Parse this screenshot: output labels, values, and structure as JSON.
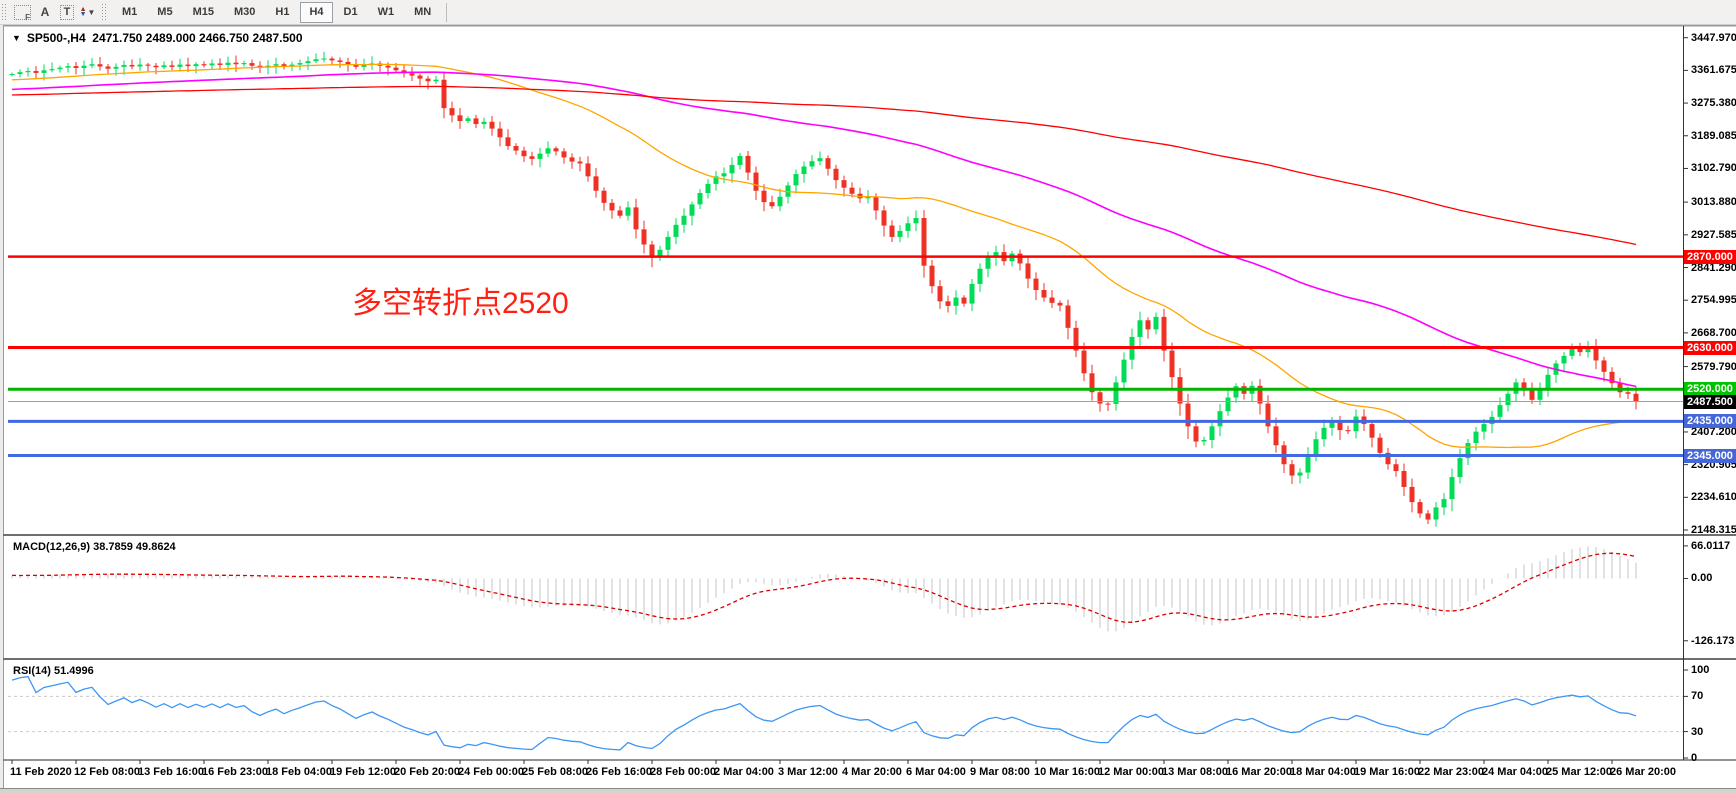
{
  "toolbar": {
    "tools": {
      "grid_label": "F",
      "pointer_label": "A",
      "text_label": "T"
    },
    "timeframes": [
      "M1",
      "M5",
      "M15",
      "M30",
      "H1",
      "H4",
      "D1",
      "W1",
      "MN"
    ],
    "active_timeframe": "H4"
  },
  "chart": {
    "title": "SP500-,H4  2471.750 2489.000 2466.750 2487.500",
    "annotation": {
      "text": "多空转折点2520",
      "color": "#FF2012"
    }
  },
  "chart_data": {
    "type": "candlestick",
    "symbol": "SP500-",
    "period": "H4",
    "ohlc_title": {
      "open": "2471.750",
      "high": "2489.000",
      "low": "2466.750",
      "close": "2487.500"
    },
    "open_first": 3350,
    "closes": [
      3352,
      3357,
      3360,
      3355,
      3362,
      3365,
      3369,
      3373,
      3368,
      3374,
      3378,
      3372,
      3366,
      3371,
      3376,
      3372,
      3377,
      3374,
      3370,
      3375,
      3371,
      3377,
      3373,
      3378,
      3375,
      3380,
      3376,
      3382,
      3378,
      3381,
      3374,
      3369,
      3374,
      3378,
      3372,
      3377,
      3381,
      3386,
      3391,
      3393,
      3388,
      3384,
      3378,
      3371,
      3376,
      3380,
      3374,
      3369,
      3362,
      3354,
      3348,
      3340,
      3333,
      3337,
      3262,
      3243,
      3228,
      3235,
      3220,
      3226,
      3208,
      3185,
      3162,
      3150,
      3135,
      3128,
      3142,
      3156,
      3148,
      3132,
      3121,
      3116,
      3082,
      3044,
      3012,
      2992,
      2978,
      3000,
      2942,
      2902,
      2868,
      2888,
      2922,
      2954,
      2978,
      3008,
      3038,
      3062,
      3082,
      3090,
      3112,
      3136,
      3092,
      3044,
      3014,
      3003,
      3028,
      3058,
      3088,
      3108,
      3122,
      3130,
      3102,
      3072,
      3052,
      3036,
      3024,
      3028,
      2992,
      2952,
      2922,
      2938,
      2958,
      2972,
      2846,
      2792,
      2752,
      2740,
      2762,
      2746,
      2798,
      2838,
      2868,
      2882,
      2858,
      2878,
      2852,
      2812,
      2782,
      2762,
      2748,
      2741,
      2682,
      2622,
      2562,
      2512,
      2482,
      2481,
      2538,
      2598,
      2658,
      2702,
      2678,
      2711,
      2622,
      2552,
      2482,
      2422,
      2382,
      2386,
      2422,
      2462,
      2498,
      2528,
      2508,
      2529,
      2482,
      2422,
      2372,
      2322,
      2292,
      2300,
      2348,
      2388,
      2418,
      2438,
      2412,
      2409,
      2448,
      2428,
      2392,
      2352,
      2322,
      2304,
      2262,
      2222,
      2192,
      2176,
      2208,
      2230,
      2288,
      2338,
      2378,
      2408,
      2428,
      2447,
      2478,
      2508,
      2538,
      2522,
      2492,
      2520,
      2558,
      2588,
      2608,
      2628,
      2618,
      2630,
      2596,
      2566,
      2536,
      2512,
      2508,
      2487.5
    ],
    "candle_colors": {
      "up": "#00DC55",
      "down": "#EF3124"
    },
    "x_labels": [
      "11 Feb 2020",
      "12 Feb 08:00",
      "13 Feb 16:00",
      "16 Feb 23:00",
      "18 Feb 04:00",
      "19 Feb 12:00",
      "20 Feb 20:00",
      "24 Feb 00:00",
      "25 Feb 08:00",
      "26 Feb 16:00",
      "28 Feb 00:00",
      "2 Mar 04:00",
      "3 Mar 12:00",
      "4 Mar 20:00",
      "6 Mar 04:00",
      "9 Mar 08:00",
      "10 Mar 16:00",
      "12 Mar 00:00",
      "13 Mar 08:00",
      "16 Mar 20:00",
      "18 Mar 04:00",
      "19 Mar 16:00",
      "22 Mar 23:00",
      "24 Mar 04:00",
      "25 Mar 12:00",
      "26 Mar 20:00"
    ],
    "x_label_every_bars": 8,
    "y_axis": {
      "ticks": [
        {
          "label": "3447.970",
          "value": 3447.97
        },
        {
          "label": "3361.675",
          "value": 3361.675
        },
        {
          "label": "3275.380",
          "value": 3275.38
        },
        {
          "label": "3189.085",
          "value": 3189.085
        },
        {
          "label": "3102.790",
          "value": 3102.79
        },
        {
          "label": "3013.880",
          "value": 3013.88
        },
        {
          "label": "2927.585",
          "value": 2927.585
        },
        {
          "label": "2841.290",
          "value": 2841.29
        },
        {
          "label": "2754.995",
          "value": 2754.995
        },
        {
          "label": "2668.700",
          "value": 2668.7
        },
        {
          "label": "2579.790",
          "value": 2579.79
        },
        {
          "label": "2407.200",
          "value": 2407.2
        },
        {
          "label": "2320.905",
          "value": 2320.905
        },
        {
          "label": "2234.610",
          "value": 2234.61
        },
        {
          "label": "2148.315",
          "value": 2148.315
        }
      ]
    },
    "h_lines": [
      {
        "price": 2870,
        "color": "#FF0000",
        "width": 2.5,
        "badge": "2870.000",
        "badge_bg": "#FF0000"
      },
      {
        "price": 2630,
        "color": "#FF0000",
        "width": 3,
        "badge": "2630.000",
        "badge_bg": "#FF0000"
      },
      {
        "price": 2520,
        "color": "#00B400",
        "width": 3,
        "badge": "2520.000",
        "badge_bg": "#00C300"
      },
      {
        "price": 2435,
        "color": "#4169E1",
        "width": 3,
        "badge": "2435.000",
        "badge_bg": "#4566D6"
      },
      {
        "price": 2345,
        "color": "#4169E1",
        "width": 3,
        "badge": "2345.000",
        "badge_bg": "#4566D6"
      },
      {
        "price": 2487.5,
        "color": "#97A3AB",
        "width": 1,
        "badge": "2487.500",
        "badge_bg": "#000000"
      }
    ],
    "moving_averages": [
      {
        "name": "ma-fast-orange",
        "period": 34,
        "color": "#FFA500",
        "width": 1.3
      },
      {
        "name": "ma-mid-magenta",
        "period": 89,
        "color": "#FF00FF",
        "width": 1.6
      },
      {
        "name": "ma-slow-red",
        "period": 200,
        "color": "#FF0000",
        "width": 1.3
      }
    ],
    "ma_warmup": {
      "from": 3240,
      "to": 3352,
      "count": 120
    },
    "indicators": {
      "macd": {
        "label": "MACD(12,26,9)",
        "values_text": "38.7859 49.8624",
        "fast": 12,
        "slow": 26,
        "signal": 9,
        "axis": [
          {
            "label": "66.0117",
            "value": 66.0117
          },
          {
            "label": "0.00",
            "value": 0
          },
          {
            "label": "-126.173",
            "value": -126.173
          }
        ],
        "histogram_color": "#C4C4C4",
        "signal_color": "#DD0000"
      },
      "rsi": {
        "label": "RSI(14)",
        "value_text": "51.4996",
        "period": 14,
        "axis": [
          100,
          70,
          30,
          0
        ],
        "levels": [
          70,
          30
        ],
        "line_color": "#3E96F4"
      }
    }
  }
}
